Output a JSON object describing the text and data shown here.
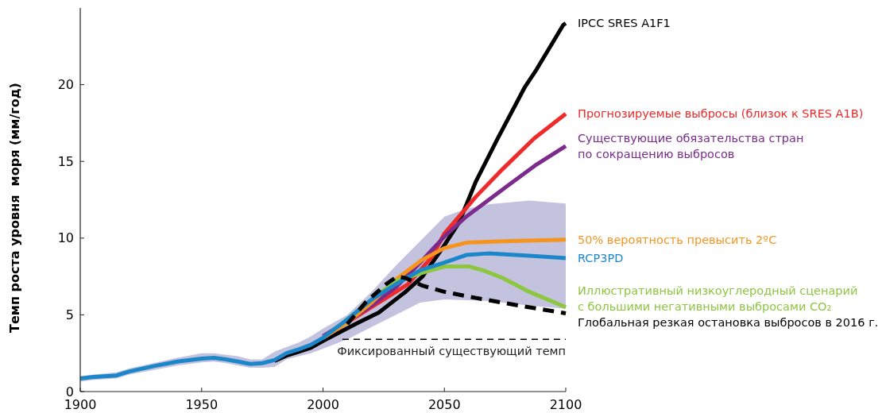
{
  "chart_data": {
    "type": "line",
    "ylabel": "Темп роста уровня  моря (мм/год)",
    "xlim": [
      1900,
      2100
    ],
    "xticks": [
      1900,
      1950,
      2000,
      2050,
      2100
    ],
    "ylim": [
      0,
      25
    ],
    "yticks": [
      0,
      5,
      10,
      15,
      20
    ],
    "grid": false,
    "series": [
      {
        "name": "IPCC SRES A1F1",
        "color": "#000000",
        "x": [
          1980,
          1985,
          1990,
          1995,
          2000,
          2014,
          2023,
          2034,
          2041,
          2049,
          2056,
          2063,
          2072,
          2083,
          2088,
          2099,
          2100
        ],
        "values": [
          2.0,
          2.35,
          2.6,
          2.85,
          3.3,
          4.45,
          5.15,
          6.5,
          7.5,
          9.3,
          11.0,
          13.7,
          16.5,
          19.8,
          21.0,
          23.9,
          24.0
        ]
      },
      {
        "name": "Прогнозируемые выбросы (близок к SRES A1B)",
        "color": "#ee2a2a",
        "x": [
          2000,
          2020,
          2035,
          2045,
          2050,
          2063,
          2074,
          2087,
          2100
        ],
        "values": [
          3.5,
          5.5,
          7.0,
          8.8,
          10.3,
          12.7,
          14.5,
          16.5,
          18.1
        ]
      },
      {
        "name": "Существующие обязательства стран\nпо сокращению выбросов",
        "color": "#7a2b8c",
        "x": [
          2000,
          2010,
          2020,
          2030,
          2040,
          2050,
          2059,
          2076,
          2088,
          2100
        ],
        "values": [
          3.6,
          4.6,
          5.6,
          6.8,
          8.4,
          10.1,
          11.4,
          13.4,
          14.8,
          16.0
        ]
      },
      {
        "name": "50% вероятность превысить 2ºC",
        "color": "#f7941d",
        "x": [
          2000,
          2010,
          2020,
          2030,
          2041,
          2050,
          2059,
          2074,
          2100
        ],
        "values": [
          3.5,
          4.5,
          5.8,
          7.3,
          8.6,
          9.35,
          9.7,
          9.8,
          9.9
        ]
      },
      {
        "name": "Иллюстративный низкоуглеродный сценарий\nс большими негативными выбросами CO₂",
        "color": "#8dc63f",
        "x": [
          2000,
          2010,
          2020,
          2030,
          2041,
          2050,
          2060,
          2066,
          2074,
          2085,
          2100
        ],
        "values": [
          3.5,
          4.7,
          6.0,
          7.2,
          7.75,
          8.15,
          8.15,
          7.9,
          7.4,
          6.5,
          5.5
        ]
      },
      {
        "name": "RCP3PD",
        "color": "#1b87c9",
        "x": [
          1900,
          1905,
          1915,
          1920,
          1930,
          1940,
          1950,
          1955,
          1960,
          1965,
          1970,
          1975,
          1980,
          1985,
          1990,
          1995,
          2000,
          2010,
          2020,
          2030,
          2040,
          2050,
          2059,
          2068,
          2085,
          2100
        ],
        "values": [
          0.85,
          0.95,
          1.05,
          1.3,
          1.65,
          1.95,
          2.15,
          2.2,
          2.1,
          1.95,
          1.8,
          1.85,
          2.05,
          2.5,
          2.75,
          3.05,
          3.5,
          4.7,
          6.0,
          7.0,
          7.9,
          8.4,
          8.9,
          9.0,
          8.85,
          8.7
        ],
        "lower": [
          0.65,
          0.75,
          0.85,
          1.1,
          1.4,
          1.7,
          1.9,
          1.95,
          1.85,
          1.7,
          1.55,
          1.55,
          1.6,
          2.1,
          2.3,
          2.5,
          2.8,
          3.4,
          4.2,
          5.0,
          5.8,
          6.0,
          5.95,
          5.9,
          5.6,
          5.4
        ],
        "upper": [
          1.0,
          1.1,
          1.25,
          1.5,
          1.85,
          2.2,
          2.5,
          2.5,
          2.4,
          2.3,
          2.1,
          2.1,
          2.6,
          2.9,
          3.2,
          3.6,
          4.1,
          5.0,
          6.5,
          8.2,
          9.8,
          11.4,
          11.9,
          12.2,
          12.45,
          12.25
        ]
      },
      {
        "name": "Глобальная резкая остановка выбросов в 2016 г.",
        "color": "#000000",
        "line_style": "dashed",
        "x": [
          2010,
          2014,
          2017.5,
          2026,
          2030.5,
          2034,
          2041,
          2050,
          2063,
          2081,
          2100
        ],
        "values": [
          4.4,
          5.15,
          5.8,
          7.0,
          7.5,
          7.4,
          6.9,
          6.5,
          6.1,
          5.6,
          5.1
        ]
      },
      {
        "color": "#000000",
        "line_style": "dashed",
        "x": [
          2008,
          2100
        ],
        "values": [
          3.4,
          3.4
        ]
      }
    ],
    "annotations": [
      {
        "text": "Фиксированный существующий темп",
        "x": 2100,
        "y": 3.4
      }
    ]
  }
}
